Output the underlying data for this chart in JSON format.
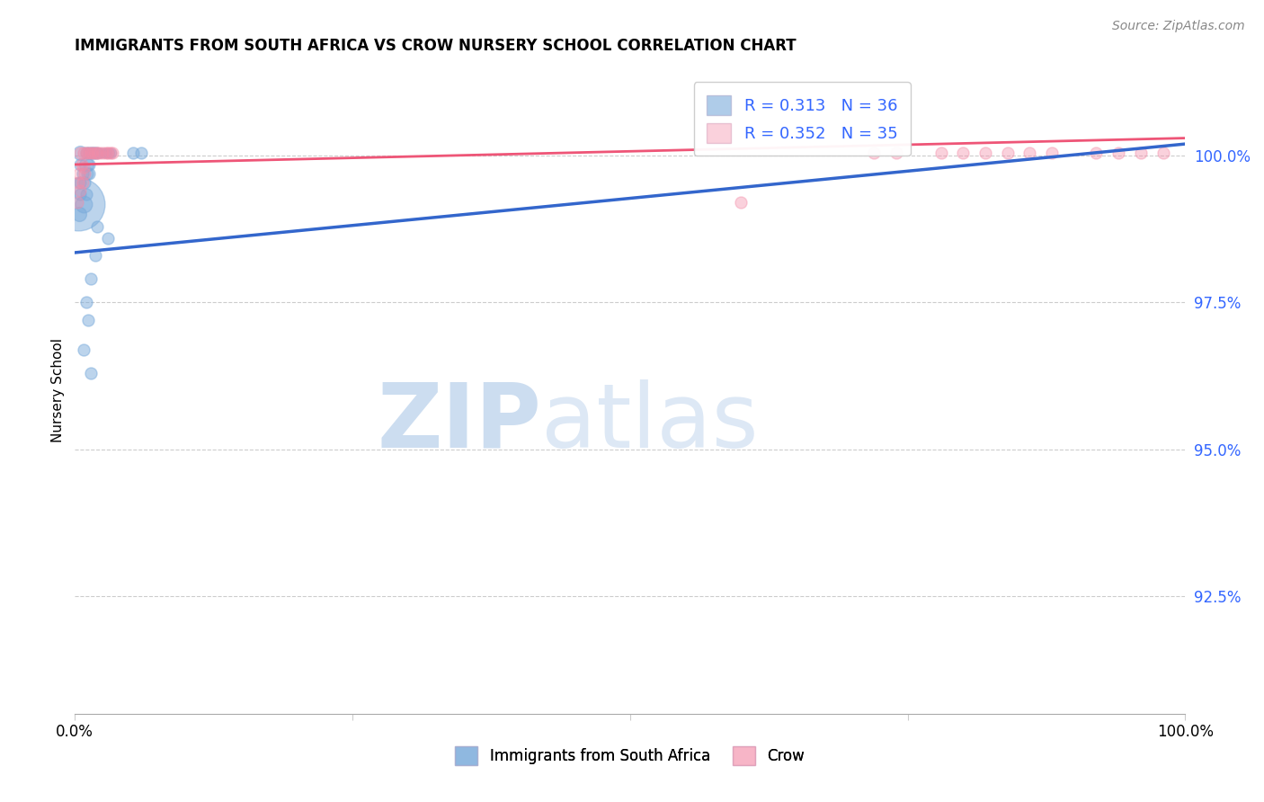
{
  "title": "IMMIGRANTS FROM SOUTH AFRICA VS CROW NURSERY SCHOOL CORRELATION CHART",
  "source": "Source: ZipAtlas.com",
  "ylabel": "Nursery School",
  "ytick_labels": [
    "100.0%",
    "97.5%",
    "95.0%",
    "92.5%"
  ],
  "ytick_values": [
    1.0,
    0.975,
    0.95,
    0.925
  ],
  "xlim": [
    0.0,
    1.0
  ],
  "ylim": [
    0.905,
    1.015
  ],
  "legend_blue_label": "R = 0.313   N = 36",
  "legend_pink_label": "R = 0.352   N = 35",
  "legend_bottom_blue": "Immigrants from South Africa",
  "legend_bottom_pink": "Crow",
  "blue_color": "#7aabdb",
  "pink_color": "#f48ca8",
  "trendline_blue_start_x": 0.0,
  "trendline_blue_start_y": 0.9835,
  "trendline_blue_end_x": 1.0,
  "trendline_blue_end_y": 1.002,
  "trendline_pink_start_x": 0.0,
  "trendline_pink_start_y": 0.9985,
  "trendline_pink_end_x": 1.0,
  "trendline_pink_end_y": 1.003,
  "blue_points": [
    [
      0.005,
      1.0005,
      7
    ],
    [
      0.01,
      1.0005,
      6
    ],
    [
      0.013,
      1.0005,
      6
    ],
    [
      0.015,
      1.0005,
      6
    ],
    [
      0.017,
      1.0005,
      6
    ],
    [
      0.019,
      1.0005,
      6
    ],
    [
      0.021,
      1.0005,
      5
    ],
    [
      0.023,
      1.0005,
      5
    ],
    [
      0.025,
      1.0005,
      5
    ],
    [
      0.027,
      1.0005,
      5
    ],
    [
      0.029,
      1.0005,
      5
    ],
    [
      0.031,
      1.0005,
      5
    ],
    [
      0.033,
      1.0005,
      5
    ],
    [
      0.052,
      1.0005,
      6
    ],
    [
      0.06,
      1.0005,
      6
    ],
    [
      0.005,
      0.9985,
      6
    ],
    [
      0.01,
      0.9985,
      7
    ],
    [
      0.013,
      0.9985,
      6
    ],
    [
      0.007,
      0.997,
      6
    ],
    [
      0.011,
      0.997,
      6
    ],
    [
      0.013,
      0.997,
      6
    ],
    [
      0.005,
      0.9955,
      6
    ],
    [
      0.009,
      0.9955,
      6
    ],
    [
      0.005,
      0.9935,
      6
    ],
    [
      0.01,
      0.9935,
      6
    ],
    [
      0.003,
      0.9918,
      20
    ],
    [
      0.008,
      0.9918,
      8
    ],
    [
      0.004,
      0.99,
      7
    ],
    [
      0.02,
      0.988,
      6
    ],
    [
      0.03,
      0.986,
      6
    ],
    [
      0.018,
      0.983,
      6
    ],
    [
      0.014,
      0.979,
      6
    ],
    [
      0.01,
      0.975,
      6
    ],
    [
      0.012,
      0.972,
      6
    ],
    [
      0.008,
      0.967,
      6
    ],
    [
      0.014,
      0.963,
      6
    ]
  ],
  "pink_points": [
    [
      0.005,
      1.0005,
      6
    ],
    [
      0.008,
      1.0005,
      6
    ],
    [
      0.01,
      1.0005,
      6
    ],
    [
      0.012,
      1.0005,
      6
    ],
    [
      0.014,
      1.0005,
      6
    ],
    [
      0.016,
      1.0005,
      6
    ],
    [
      0.018,
      1.0005,
      6
    ],
    [
      0.02,
      1.0005,
      6
    ],
    [
      0.022,
      1.0005,
      6
    ],
    [
      0.025,
      1.0005,
      6
    ],
    [
      0.028,
      1.0005,
      6
    ],
    [
      0.03,
      1.0005,
      6
    ],
    [
      0.032,
      1.0005,
      6
    ],
    [
      0.034,
      1.0005,
      6
    ],
    [
      0.006,
      0.9985,
      6
    ],
    [
      0.008,
      0.998,
      6
    ],
    [
      0.004,
      0.997,
      6
    ],
    [
      0.009,
      0.997,
      6
    ],
    [
      0.003,
      0.9955,
      6
    ],
    [
      0.007,
      0.9955,
      6
    ],
    [
      0.005,
      0.994,
      6
    ],
    [
      0.002,
      0.992,
      6
    ],
    [
      0.6,
      0.992,
      6
    ],
    [
      0.72,
      1.0005,
      6
    ],
    [
      0.74,
      1.0005,
      6
    ],
    [
      0.78,
      1.0005,
      6
    ],
    [
      0.8,
      1.0005,
      6
    ],
    [
      0.82,
      1.0005,
      6
    ],
    [
      0.84,
      1.0005,
      6
    ],
    [
      0.86,
      1.0005,
      6
    ],
    [
      0.88,
      1.0005,
      6
    ],
    [
      0.92,
      1.0005,
      6
    ],
    [
      0.94,
      1.0005,
      6
    ],
    [
      0.96,
      1.0005,
      6
    ],
    [
      0.98,
      1.0005,
      6
    ]
  ],
  "background_color": "#ffffff",
  "grid_color": "#cccccc",
  "watermark_zip": "ZIP",
  "watermark_atlas": "atlas",
  "watermark_color": "#ccddf0"
}
